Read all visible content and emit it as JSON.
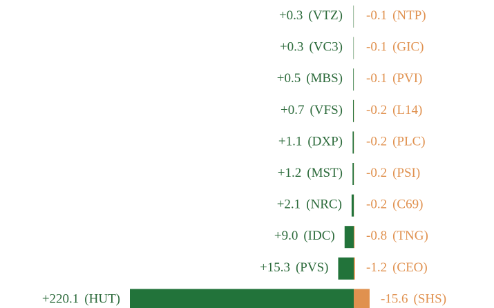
{
  "chart_data": {
    "type": "diverging_bar",
    "positive": {
      "color": "#22733a",
      "text_color": "#2b6a3a",
      "tickers": [
        "(VTZ)",
        "(VC3)",
        "(MBS)",
        "(VFS)",
        "(DXP)",
        "(MST)",
        "(NRC)",
        "(IDC)",
        "(PVS)",
        "(HUT)"
      ],
      "values": [
        0.3,
        0.3,
        0.5,
        0.7,
        1.1,
        1.2,
        2.1,
        9.0,
        15.3,
        220.1
      ],
      "value_labels": [
        "+0.3",
        "+0.3",
        "+0.5",
        "+0.7",
        "+1.1",
        "+1.2",
        "+2.1",
        "+9.0",
        "+15.3",
        "+220.1"
      ]
    },
    "negative": {
      "color": "#e0914f",
      "text_color": "#e0914f",
      "tickers": [
        "(NTP)",
        "(GIC)",
        "(PVI)",
        "(L14)",
        "(PLC)",
        "(PSI)",
        "(C69)",
        "(TNG)",
        "(CEO)",
        "(SHS)"
      ],
      "values": [
        -0.1,
        -0.1,
        -0.1,
        -0.2,
        -0.2,
        -0.2,
        -0.2,
        -0.8,
        -1.2,
        -15.6
      ]
    }
  }
}
